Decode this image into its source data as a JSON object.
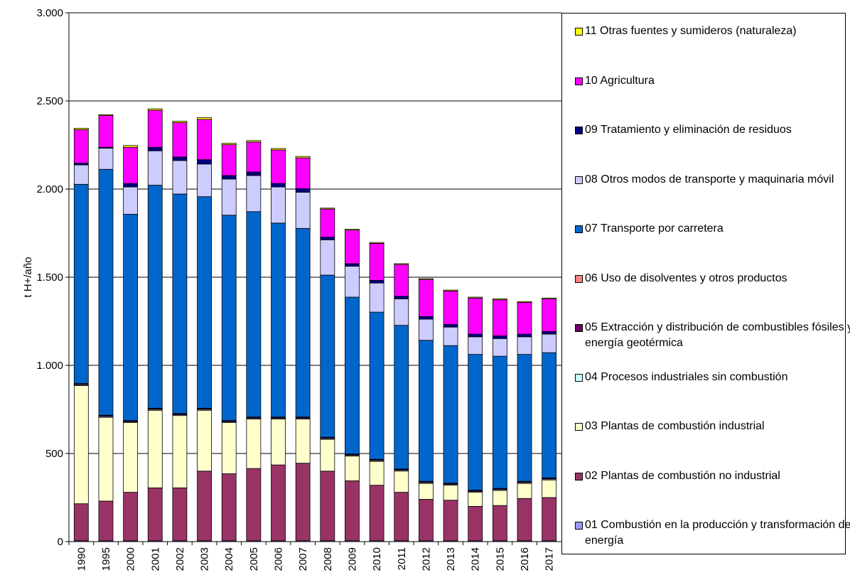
{
  "chart_data": {
    "type": "stacked_bar",
    "y_label": "t H+/año",
    "categories": [
      "1990",
      "1995",
      "2000",
      "2001",
      "2002",
      "2003",
      "2004",
      "2005",
      "2006",
      "2007",
      "2008",
      "2009",
      "2010",
      "2011",
      "2012",
      "2013",
      "2014",
      "2015",
      "2016",
      "2017"
    ],
    "ylim": [
      0,
      3000
    ],
    "yticks": [
      0,
      500,
      {
        "value": 1000,
        "label": "1.000"
      },
      {
        "value": 1500,
        "label": "1.500"
      },
      {
        "value": 2000,
        "label": "2.000"
      },
      {
        "value": 2500,
        "label": "2.500"
      },
      {
        "value": 3000,
        "label": "3.000"
      }
    ],
    "grid": true,
    "legend": "right",
    "series": [
      {
        "name": "01 Combustión en la producción y transformación de energía",
        "color": "#9999ff",
        "values": [
          5,
          5,
          5,
          5,
          5,
          5,
          5,
          5,
          5,
          5,
          5,
          5,
          5,
          5,
          5,
          5,
          5,
          5,
          5,
          5
        ]
      },
      {
        "name": "02 Plantas de combustión no industrial",
        "color": "#993366",
        "values": [
          210,
          225,
          275,
          300,
          300,
          395,
          380,
          410,
          430,
          440,
          395,
          340,
          315,
          275,
          235,
          230,
          195,
          200,
          240,
          245
        ]
      },
      {
        "name": "03 Plantas de combustión industrial",
        "color": "#ffffcc",
        "values": [
          670,
          475,
          395,
          440,
          410,
          345,
          290,
          280,
          260,
          250,
          180,
          140,
          135,
          120,
          90,
          85,
          80,
          85,
          85,
          100
        ]
      },
      {
        "name": "04 Procesos industriales sin combustión",
        "color": "#ccffff",
        "values": [
          5,
          5,
          5,
          5,
          5,
          5,
          5,
          5,
          5,
          5,
          5,
          5,
          5,
          5,
          5,
          5,
          5,
          5,
          5,
          5
        ]
      },
      {
        "name": "05 Extracción y distribución de combustibles fósiles y energía geotérmica",
        "color": "#660066",
        "values": [
          5,
          5,
          5,
          5,
          5,
          5,
          5,
          5,
          5,
          5,
          5,
          5,
          5,
          5,
          5,
          5,
          5,
          5,
          5,
          5
        ]
      },
      {
        "name": "06 Uso de disolventes y otros productos",
        "color": "#ff8080",
        "values": [
          2,
          2,
          2,
          2,
          2,
          2,
          2,
          2,
          2,
          2,
          2,
          2,
          2,
          2,
          2,
          2,
          2,
          2,
          2,
          2
        ]
      },
      {
        "name": "07 Transporte por carretera",
        "color": "#0066cc",
        "values": [
          1130,
          1395,
          1170,
          1265,
          1245,
          1200,
          1165,
          1165,
          1100,
          1070,
          920,
          890,
          835,
          815,
          800,
          780,
          770,
          750,
          720,
          710
        ]
      },
      {
        "name": "08 Otros modos de transporte y maquinaria móvil",
        "color": "#ccccff",
        "values": [
          110,
          120,
          155,
          195,
          190,
          185,
          205,
          205,
          205,
          205,
          200,
          175,
          165,
          150,
          120,
          105,
          100,
          100,
          100,
          105
        ]
      },
      {
        "name": "09 Tratamiento y eliminación de residuos",
        "color": "#000080",
        "values": [
          10,
          5,
          20,
          20,
          20,
          25,
          20,
          20,
          20,
          20,
          15,
          15,
          15,
          15,
          15,
          15,
          15,
          15,
          15,
          15
        ]
      },
      {
        "name": "10 Agricultura",
        "color": "#ff00ff",
        "values": [
          190,
          180,
          205,
          210,
          195,
          228,
          175,
          170,
          190,
          175,
          160,
          190,
          210,
          180,
          210,
          190,
          205,
          205,
          180,
          185
        ]
      },
      {
        "name": "11 Otras fuentes y sumideros (naturaleza)",
        "color": "#ffff00",
        "values": [
          8,
          5,
          10,
          8,
          8,
          10,
          8,
          8,
          8,
          8,
          5,
          5,
          5,
          5,
          5,
          5,
          5,
          5,
          5,
          5
        ]
      }
    ]
  }
}
